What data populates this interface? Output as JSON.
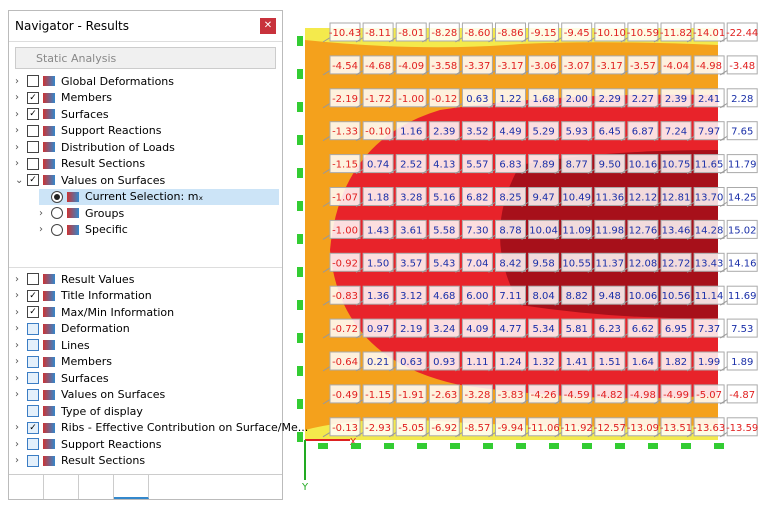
{
  "window": {
    "title": "Navigator - Results",
    "dropdown": "Static Analysis"
  },
  "tree_top": [
    {
      "label": "Global Deformations",
      "checked": false,
      "expanded": false
    },
    {
      "label": "Members",
      "checked": true,
      "expanded": false
    },
    {
      "label": "Surfaces",
      "checked": true,
      "expanded": false
    },
    {
      "label": "Support Reactions",
      "checked": false,
      "expanded": false
    },
    {
      "label": "Distribution of Loads",
      "checked": false,
      "expanded": false
    },
    {
      "label": "Result Sections",
      "checked": false,
      "expanded": false
    },
    {
      "label": "Values on Surfaces",
      "checked": true,
      "expanded": true
    }
  ],
  "radio_items": [
    {
      "label": "Current Selection: mₓ",
      "selected": true
    },
    {
      "label": "Groups",
      "selected": false
    },
    {
      "label": "Specific",
      "selected": false
    }
  ],
  "tree_bottom": [
    {
      "label": "Result Values",
      "checked": false
    },
    {
      "label": "Title Information",
      "checked": true
    },
    {
      "label": "Max/Min Information",
      "checked": true
    },
    {
      "label": "Deformation",
      "checked": false
    },
    {
      "label": "Lines",
      "checked": false
    },
    {
      "label": "Members",
      "checked": false
    },
    {
      "label": "Surfaces",
      "checked": false
    },
    {
      "label": "Values on Surfaces",
      "checked": false
    },
    {
      "label": "Type of display",
      "checked": false
    },
    {
      "label": "Ribs - Effective Contribution on Surface/Me...",
      "checked": true
    },
    {
      "label": "Support Reactions",
      "checked": false
    },
    {
      "label": "Result Sections",
      "checked": false
    }
  ],
  "axes": {
    "x": "X",
    "y": "Y"
  },
  "grid": {
    "rows": [
      [
        "-10.43",
        "-8.11",
        "-8.01",
        "-8.28",
        "-8.60",
        "-8.86",
        "-9.15",
        "-9.45",
        "-10.10",
        "-10.59",
        "-11.82",
        "-14.01",
        "-22.44"
      ],
      [
        "-4.54",
        "-4.68",
        "-4.09",
        "-3.58",
        "-3.37",
        "-3.17",
        "-3.06",
        "-3.07",
        "-3.17",
        "-3.57",
        "-4.04",
        "-4.98",
        "-3.48"
      ],
      [
        "-2.19",
        "-1.72",
        "-1.00",
        "-0.12",
        "0.63",
        "1.22",
        "1.68",
        "2.00",
        "2.29",
        "2.27",
        "2.39",
        "2.41",
        "2.28"
      ],
      [
        "-1.33",
        "-0.10",
        "1.16",
        "2.39",
        "3.52",
        "4.49",
        "5.29",
        "5.93",
        "6.45",
        "6.87",
        "7.24",
        "7.97",
        "7.65"
      ],
      [
        "-1.15",
        "0.74",
        "2.52",
        "4.13",
        "5.57",
        "6.83",
        "7.89",
        "8.77",
        "9.50",
        "10.16",
        "10.75",
        "11.65",
        "11.79"
      ],
      [
        "-1.07",
        "1.18",
        "3.28",
        "5.16",
        "6.82",
        "8.25",
        "9.47",
        "10.49",
        "11.36",
        "12.12",
        "12.81",
        "13.70",
        "14.25"
      ],
      [
        "-1.00",
        "1.43",
        "3.61",
        "5.58",
        "7.30",
        "8.78",
        "10.04",
        "11.09",
        "11.98",
        "12.76",
        "13.46",
        "14.28",
        "15.02"
      ],
      [
        "-0.92",
        "1.50",
        "3.57",
        "5.43",
        "7.04",
        "8.42",
        "9.58",
        "10.55",
        "11.37",
        "12.08",
        "12.72",
        "13.43",
        "14.16"
      ],
      [
        "-0.83",
        "1.36",
        "3.12",
        "4.68",
        "6.00",
        "7.11",
        "8.04",
        "8.82",
        "9.48",
        "10.06",
        "10.56",
        "11.14",
        "11.69"
      ],
      [
        "-0.72",
        "0.97",
        "2.19",
        "3.24",
        "4.09",
        "4.77",
        "5.34",
        "5.81",
        "6.23",
        "6.62",
        "6.95",
        "7.37",
        "7.53"
      ],
      [
        "-0.64",
        "0.21",
        "0.63",
        "0.93",
        "1.11",
        "1.24",
        "1.32",
        "1.41",
        "1.51",
        "1.64",
        "1.82",
        "1.99",
        "1.89"
      ],
      [
        "-0.49",
        "-1.15",
        "-1.91",
        "-2.63",
        "-3.28",
        "-3.83",
        "-4.26",
        "-4.59",
        "-4.82",
        "-4.98",
        "-4.99",
        "-5.07",
        "-4.87"
      ],
      [
        "-0.13",
        "-2.93",
        "-5.05",
        "-6.92",
        "-8.57",
        "-9.94",
        "-11.06",
        "-11.92",
        "-12.57",
        "-13.09",
        "-13.51",
        "-13.63",
        "-13.59"
      ]
    ]
  }
}
